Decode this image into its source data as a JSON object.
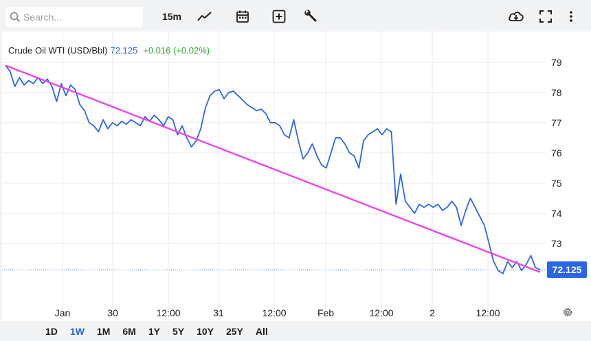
{
  "toolbar": {
    "search_placeholder": "Search...",
    "interval": "15m",
    "icons": [
      "search-icon",
      "line-chart-icon",
      "calendar-icon",
      "add-indicator-icon",
      "wrench-icon",
      "cloud-download-icon",
      "fullscreen-icon",
      "more-vertical-icon"
    ]
  },
  "legend": {
    "name": "Crude Oil WTI (USD/Bbl)",
    "price": "72.125",
    "change": "+0.016 (+0.02%)"
  },
  "price_tag": "72.125",
  "ranges": [
    {
      "label": "1D",
      "active": false
    },
    {
      "label": "1W",
      "active": true
    },
    {
      "label": "1M",
      "active": false
    },
    {
      "label": "6M",
      "active": false
    },
    {
      "label": "1Y",
      "active": false
    },
    {
      "label": "5Y",
      "active": false
    },
    {
      "label": "10Y",
      "active": false
    },
    {
      "label": "25Y",
      "active": false
    },
    {
      "label": "All",
      "active": false
    }
  ],
  "colors": {
    "series": "#2a66e8",
    "trendline": "#ee44ee",
    "positive": "#2cab33",
    "grid": "#e9eaee"
  },
  "chart_data": {
    "type": "line",
    "x_tick_labels": [
      "Jan",
      "30",
      "12:00",
      "31",
      "12:00",
      "Feb",
      "12:00",
      "2",
      "12:00"
    ],
    "y_ticks": [
      73,
      74,
      75,
      76,
      77,
      78,
      79
    ],
    "ylim": [
      71.2,
      80.0
    ],
    "last_value": 72.125,
    "series": [
      {
        "values": [
          78.9,
          78.7,
          78.2,
          78.5,
          78.25,
          78.4,
          78.3,
          78.5,
          78.3,
          78.45,
          78.2,
          77.7,
          78.3,
          77.9,
          78.25,
          78.1,
          77.6,
          77.4,
          77.0,
          76.9,
          76.7,
          77.1,
          76.8,
          77.0,
          76.9,
          77.05,
          76.95,
          77.1,
          77.0,
          76.9,
          77.2,
          77.05,
          77.25,
          77.1,
          76.9,
          77.2,
          77.1,
          76.6,
          76.9,
          76.5,
          76.2,
          76.4,
          76.8,
          77.5,
          77.9,
          78.05,
          78.1,
          77.8,
          78.0,
          78.05,
          77.9,
          77.75,
          77.6,
          77.5,
          77.4,
          77.45,
          77.3,
          77.0,
          77.0,
          76.9,
          76.6,
          76.5,
          77.1,
          76.4,
          75.8,
          76.0,
          76.3,
          75.9,
          75.6,
          75.5,
          76.0,
          76.5,
          76.5,
          76.3,
          76.0,
          75.9,
          75.5,
          76.4,
          76.6,
          76.7,
          76.8,
          76.6,
          76.8,
          76.7,
          74.3,
          75.3,
          74.4,
          74.2,
          74.0,
          74.3,
          74.2,
          74.3,
          74.2,
          74.3,
          74.1,
          74.2,
          74.4,
          74.2,
          73.6,
          74.1,
          74.5,
          74.2,
          73.9,
          73.6,
          73.0,
          72.4,
          72.1,
          72.0,
          72.4,
          72.2,
          72.4,
          72.1,
          72.3,
          72.6,
          72.2,
          72.125
        ]
      }
    ],
    "trendline": {
      "start": 78.9,
      "end": 72.05
    }
  }
}
